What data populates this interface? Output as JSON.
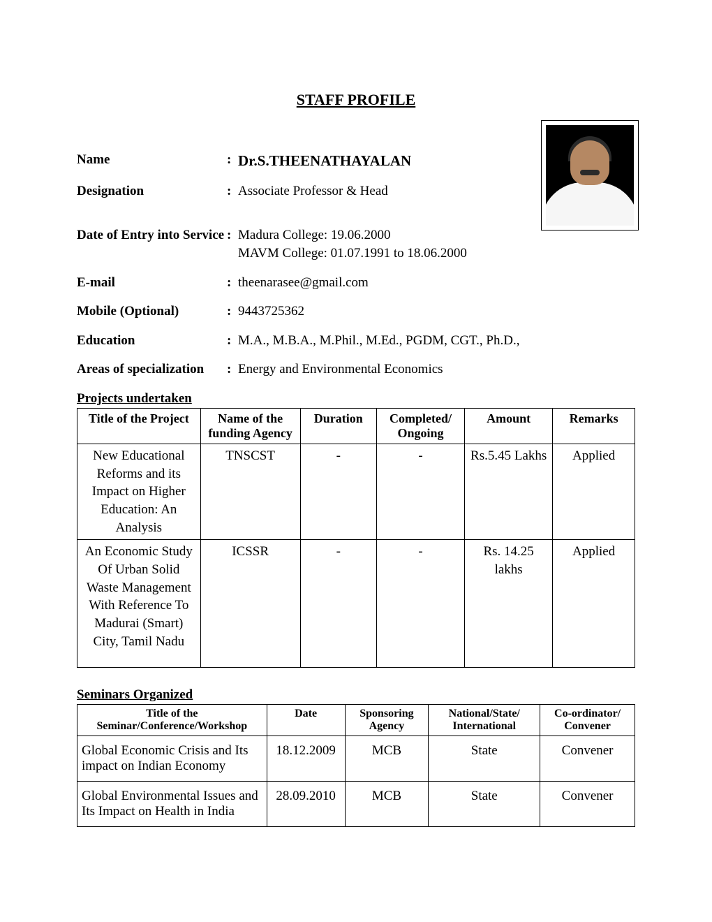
{
  "title": "STAFF PROFILE",
  "fields": {
    "name": {
      "label": "Name",
      "value": "Dr.S.THEENATHAYALAN"
    },
    "designation": {
      "label": "Designation",
      "value": "Associate Professor & Head"
    },
    "entry": {
      "label": "Date of Entry into Service",
      "line1": "Madura College: 19.06.2000",
      "line2": "MAVM College: 01.07.1991 to 18.06.2000"
    },
    "email": {
      "label": "E-mail",
      "value": "theenarasee@gmail.com"
    },
    "mobile": {
      "label": "Mobile (Optional)",
      "value": "9443725362"
    },
    "education": {
      "label": "Education",
      "value": "M.A., M.B.A., M.Phil., M.Ed., PGDM, CGT., Ph.D.,"
    },
    "specialization": {
      "label": "Areas of specialization",
      "value": "Energy and Environmental Economics"
    }
  },
  "projects": {
    "heading": "Projects undertaken",
    "columns": [
      "Title of the Project",
      "Name of the funding Agency",
      "Duration",
      "Completed/ Ongoing",
      "Amount",
      "Remarks"
    ],
    "col_widths": [
      "21%",
      "17%",
      "13%",
      "15%",
      "15%",
      "14%"
    ],
    "rows": [
      {
        "title": "New Educational Reforms and its Impact on Higher Education: An Analysis",
        "agency": "TNSCST",
        "duration": "-",
        "status": "-",
        "amount": "Rs.5.45 Lakhs",
        "remarks": "Applied"
      },
      {
        "title": "An Economic Study Of Urban Solid Waste Management With Reference To Madurai (Smart) City, Tamil Nadu",
        "agency": "ICSSR",
        "duration": "-",
        "status": "-",
        "amount": "Rs. 14.25 lakhs",
        "remarks": "Applied"
      }
    ]
  },
  "seminars": {
    "heading": "Seminars Organized",
    "columns": [
      "Title of the Seminar/Conference/Workshop",
      "Date",
      "Sponsoring Agency",
      "National/State/ International",
      "Co-ordinator/ Convener"
    ],
    "col_widths": [
      "34%",
      "14%",
      "15%",
      "20%",
      "17%"
    ],
    "rows": [
      {
        "title": "Global Economic Crisis and Its impact on Indian Economy",
        "date": "18.12.2009",
        "agency": "MCB",
        "level": "State",
        "role": "Convener"
      },
      {
        "title": "Global Environmental Issues and Its Impact on Health in India",
        "date": "28.09.2010",
        "agency": "MCB",
        "level": "State",
        "role": "Convener"
      }
    ]
  },
  "colors": {
    "text": "#000000",
    "bg": "#ffffff",
    "border": "#000000"
  }
}
